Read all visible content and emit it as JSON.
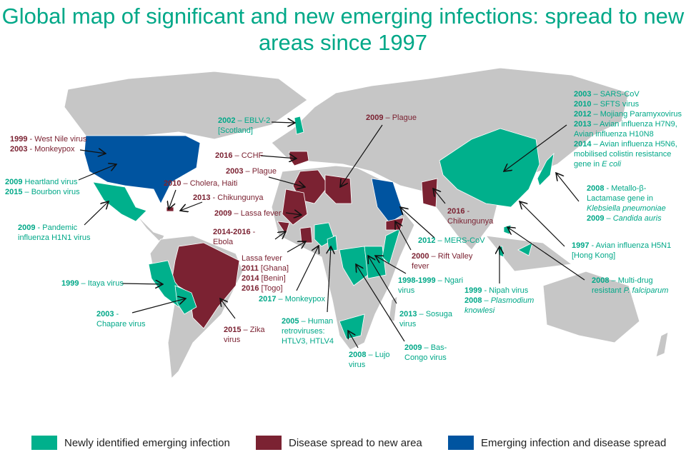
{
  "title": "Global map of significant and new emerging infections: spread to new areas since 1997",
  "colors": {
    "new": "#00b08c",
    "spread": "#7b2232",
    "both": "#0054a0",
    "land": "#c6c6c6",
    "title": "#00a888"
  },
  "legend": [
    {
      "label": "Newly identified emerging infection",
      "color": "#00b08c"
    },
    {
      "label": "Disease spread to new area",
      "color": "#7b2232"
    },
    {
      "label": "Emerging infection and disease spread",
      "color": "#0054a0"
    }
  ],
  "annotations": [
    {
      "color": "maroon",
      "lines": [
        {
          "year": "1999",
          "text": " - West Nile virus"
        },
        {
          "year": "2003",
          "text": " - Monkeypox"
        }
      ]
    },
    {
      "color": "teal",
      "lines": [
        {
          "year": "2009",
          "text": "  Heartland virus"
        },
        {
          "year": "2015",
          "text": " – Bourbon virus"
        }
      ]
    },
    {
      "color": "teal",
      "lines": [
        {
          "year": "2009",
          "text": " - Pandemic"
        },
        {
          "year": "",
          "text": "influenza H1N1 virus"
        }
      ]
    },
    {
      "color": "teal",
      "lines": [
        {
          "year": "1999",
          "text": " – Itaya virus"
        }
      ]
    },
    {
      "color": "teal",
      "lines": [
        {
          "year": "2003",
          "text": " -"
        },
        {
          "year": "",
          "text": "Chapare virus"
        }
      ]
    },
    {
      "color": "maroon",
      "lines": [
        {
          "year": "2010",
          "text": " – Cholera, Haiti"
        }
      ]
    },
    {
      "color": "maroon",
      "lines": [
        {
          "year": "2013",
          "text": " - Chikungunya"
        }
      ]
    },
    {
      "color": "teal",
      "lines": [
        {
          "year": "2002",
          "text": " – EBLV-2"
        },
        {
          "year": "",
          "text": "[Scotland]"
        }
      ]
    },
    {
      "color": "maroon",
      "lines": [
        {
          "year": "2016",
          "text": " – CCHF"
        }
      ]
    },
    {
      "color": "maroon",
      "lines": [
        {
          "year": "2003",
          "text": " – Plague"
        }
      ]
    },
    {
      "color": "maroon",
      "lines": [
        {
          "year": "2009",
          "text": " – Lassa fever"
        }
      ]
    },
    {
      "color": "maroon",
      "lines": [
        {
          "year": "2014-2016",
          "text": " -"
        },
        {
          "year": "",
          "text": "Ebola"
        }
      ]
    },
    {
      "color": "maroon",
      "lines": [
        {
          "year": "",
          "text": "Lassa fever"
        },
        {
          "year": "2011",
          "text": " [Ghana]"
        },
        {
          "year": "2014",
          "text": " [Benin]"
        },
        {
          "year": "2016",
          "text": " [Togo]"
        }
      ]
    },
    {
      "color": "maroon",
      "lines": [
        {
          "year": "2015",
          "text": " – Zika"
        },
        {
          "year": "",
          "text": "virus"
        }
      ]
    },
    {
      "color": "teal",
      "lines": [
        {
          "year": "2017",
          "text": " – Monkeypox"
        }
      ]
    },
    {
      "color": "teal",
      "lines": [
        {
          "year": "2005",
          "text": " – Human"
        },
        {
          "year": "",
          "text": "retroviruses:"
        },
        {
          "year": "",
          "text": "HTLV3, HTLV4"
        }
      ]
    },
    {
      "color": "teal",
      "lines": [
        {
          "year": "2008",
          "text": " – Lujo"
        },
        {
          "year": "",
          "text": "virus"
        }
      ]
    },
    {
      "color": "maroon",
      "lines": [
        {
          "year": "2009",
          "text": " – Plague"
        }
      ]
    },
    {
      "color": "teal",
      "lines": [
        {
          "year": "2012",
          "text": " – MERS-CoV"
        }
      ]
    },
    {
      "color": "maroon",
      "lines": [
        {
          "year": "2000",
          "text": " – Rift Valley"
        },
        {
          "year": "",
          "text": "fever"
        }
      ]
    },
    {
      "color": "teal",
      "lines": [
        {
          "year": "1998-1999",
          "text": " – Ngari"
        },
        {
          "year": "",
          "text": "virus"
        }
      ]
    },
    {
      "color": "teal",
      "lines": [
        {
          "year": "2013",
          "text": " – Sosuga"
        },
        {
          "year": "",
          "text": "virus"
        }
      ]
    },
    {
      "color": "teal",
      "lines": [
        {
          "year": "2009",
          "text": " – Bas-"
        },
        {
          "year": "",
          "text": "Congo virus"
        }
      ]
    },
    {
      "color": "maroon",
      "lines": [
        {
          "year": "2016",
          "text": " -"
        },
        {
          "year": "",
          "text": "Chikungunya"
        }
      ]
    },
    {
      "color": "teal",
      "lines": [
        {
          "year": "2003",
          "text": " – SARS-CoV"
        },
        {
          "year": "2010",
          "text": " – SFTS virus"
        },
        {
          "year": "2012",
          "text": " – Mojiang Paramyxovirus"
        },
        {
          "year": "2013",
          "text": " – Avian influenza H7N9,"
        },
        {
          "year": "",
          "text": "Avian influenza H10N8"
        },
        {
          "year": "2014",
          "text": " – Avian influenza H5N6,"
        },
        {
          "year": "",
          "text": "mobilised colistin resistance"
        },
        {
          "year": "",
          "text": "gene in ",
          "italic": "E coli"
        }
      ]
    },
    {
      "color": "teal",
      "lines": [
        {
          "year": "2008",
          "text": " - Metallo-β-"
        },
        {
          "year": "",
          "text": "Lactamase gene in"
        },
        {
          "year": "",
          "text": "",
          "italic": "Klebsiella pneumoniae"
        },
        {
          "year": "2009",
          "text": " – ",
          "italic": "Candida auris"
        }
      ]
    },
    {
      "color": "teal",
      "lines": [
        {
          "year": "1997",
          "text": " - Avian influenza H5N1"
        },
        {
          "year": "",
          "text": "[Hong Kong]"
        }
      ]
    },
    {
      "color": "teal",
      "lines": [
        {
          "year": "1999",
          "text": " - Nipah virus"
        },
        {
          "year": "2008",
          "text": " – ",
          "italic": "Plasmodium"
        },
        {
          "year": "",
          "text": "",
          "italic": "knowlesi"
        }
      ]
    },
    {
      "color": "teal",
      "lines": [
        {
          "year": "2008",
          "text": " – Multi-drug"
        },
        {
          "year": "",
          "text": "resistant ",
          "italic": "P. falciparum"
        }
      ]
    }
  ]
}
